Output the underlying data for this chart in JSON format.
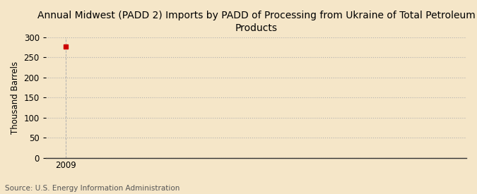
{
  "title": "Annual Midwest (PADD 2) Imports by PADD of Processing from Ukraine of Total Petroleum Products",
  "ylabel": "Thousand Barrels",
  "source": "Source: U.S. Energy Information Administration",
  "x_data": [
    2009
  ],
  "y_data": [
    276
  ],
  "marker_color": "#cc0000",
  "ylim": [
    0,
    300
  ],
  "yticks": [
    0,
    50,
    100,
    150,
    200,
    250,
    300
  ],
  "xlim": [
    2008.3,
    2023
  ],
  "xticks": [
    2009
  ],
  "background_color": "#f5e6c8",
  "grid_color": "#b0b0b0",
  "spine_color": "#333333",
  "title_fontsize": 10,
  "label_fontsize": 8.5,
  "tick_fontsize": 8.5,
  "source_fontsize": 7.5,
  "marker_size": 4
}
